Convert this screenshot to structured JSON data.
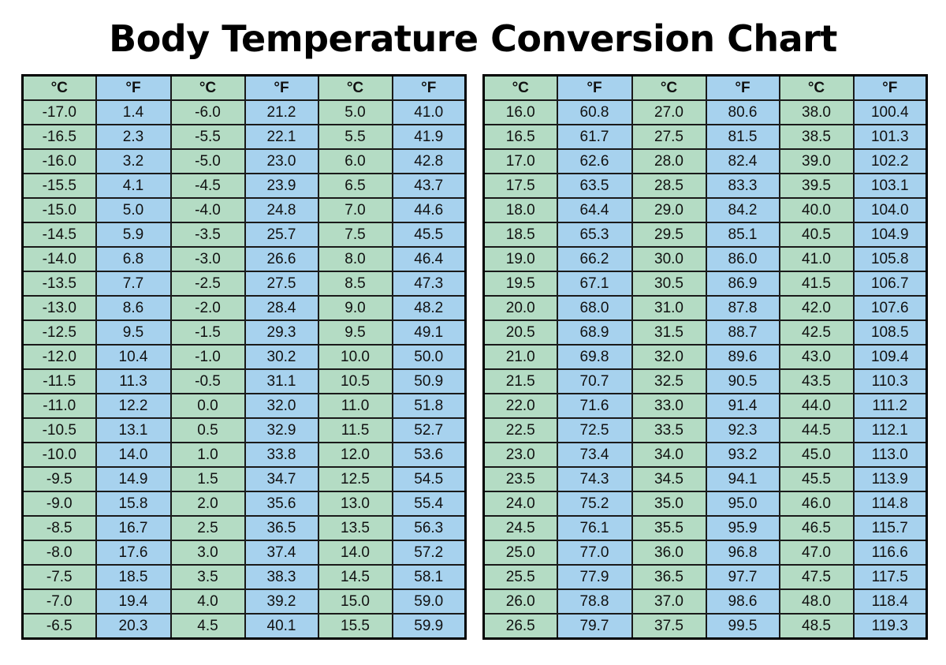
{
  "title": "Body Temperature Conversion Chart",
  "header": [
    "°C",
    "°F",
    "°C",
    "°F",
    "°C",
    "°F"
  ],
  "left_table": [
    [
      "-17.0",
      "1.4",
      "-6.0",
      "21.2",
      "5.0",
      "41.0"
    ],
    [
      "-16.5",
      "2.3",
      "-5.5",
      "22.1",
      "5.5",
      "41.9"
    ],
    [
      "-16.0",
      "3.2",
      "-5.0",
      "23.0",
      "6.0",
      "42.8"
    ],
    [
      "-15.5",
      "4.1",
      "-4.5",
      "23.9",
      "6.5",
      "43.7"
    ],
    [
      "-15.0",
      "5.0",
      "-4.0",
      "24.8",
      "7.0",
      "44.6"
    ],
    [
      "-14.5",
      "5.9",
      "-3.5",
      "25.7",
      "7.5",
      "45.5"
    ],
    [
      "-14.0",
      "6.8",
      "-3.0",
      "26.6",
      "8.0",
      "46.4"
    ],
    [
      "-13.5",
      "7.7",
      "-2.5",
      "27.5",
      "8.5",
      "47.3"
    ],
    [
      "-13.0",
      "8.6",
      "-2.0",
      "28.4",
      "9.0",
      "48.2"
    ],
    [
      "-12.5",
      "9.5",
      "-1.5",
      "29.3",
      "9.5",
      "49.1"
    ],
    [
      "-12.0",
      "10.4",
      "-1.0",
      "30.2",
      "10.0",
      "50.0"
    ],
    [
      "-11.5",
      "11.3",
      "-0.5",
      "31.1",
      "10.5",
      "50.9"
    ],
    [
      "-11.0",
      "12.2",
      "0.0",
      "32.0",
      "11.0",
      "51.8"
    ],
    [
      "-10.5",
      "13.1",
      "0.5",
      "32.9",
      "11.5",
      "52.7"
    ],
    [
      "-10.0",
      "14.0",
      "1.0",
      "33.8",
      "12.0",
      "53.6"
    ],
    [
      "-9.5",
      "14.9",
      "1.5",
      "34.7",
      "12.5",
      "54.5"
    ],
    [
      "-9.0",
      "15.8",
      "2.0",
      "35.6",
      "13.0",
      "55.4"
    ],
    [
      "-8.5",
      "16.7",
      "2.5",
      "36.5",
      "13.5",
      "56.3"
    ],
    [
      "-8.0",
      "17.6",
      "3.0",
      "37.4",
      "14.0",
      "57.2"
    ],
    [
      "-7.5",
      "18.5",
      "3.5",
      "38.3",
      "14.5",
      "58.1"
    ],
    [
      "-7.0",
      "19.4",
      "4.0",
      "39.2",
      "15.0",
      "59.0"
    ],
    [
      "-6.5",
      "20.3",
      "4.5",
      "40.1",
      "15.5",
      "59.9"
    ]
  ],
  "right_table": [
    [
      "16.0",
      "60.8",
      "27.0",
      "80.6",
      "38.0",
      "100.4"
    ],
    [
      "16.5",
      "61.7",
      "27.5",
      "81.5",
      "38.5",
      "101.3"
    ],
    [
      "17.0",
      "62.6",
      "28.0",
      "82.4",
      "39.0",
      "102.2"
    ],
    [
      "17.5",
      "63.5",
      "28.5",
      "83.3",
      "39.5",
      "103.1"
    ],
    [
      "18.0",
      "64.4",
      "29.0",
      "84.2",
      "40.0",
      "104.0"
    ],
    [
      "18.5",
      "65.3",
      "29.5",
      "85.1",
      "40.5",
      "104.9"
    ],
    [
      "19.0",
      "66.2",
      "30.0",
      "86.0",
      "41.0",
      "105.8"
    ],
    [
      "19.5",
      "67.1",
      "30.5",
      "86.9",
      "41.5",
      "106.7"
    ],
    [
      "20.0",
      "68.0",
      "31.0",
      "87.8",
      "42.0",
      "107.6"
    ],
    [
      "20.5",
      "68.9",
      "31.5",
      "88.7",
      "42.5",
      "108.5"
    ],
    [
      "21.0",
      "69.8",
      "32.0",
      "89.6",
      "43.0",
      "109.4"
    ],
    [
      "21.5",
      "70.7",
      "32.5",
      "90.5",
      "43.5",
      "110.3"
    ],
    [
      "22.0",
      "71.6",
      "33.0",
      "91.4",
      "44.0",
      "111.2"
    ],
    [
      "22.5",
      "72.5",
      "33.5",
      "92.3",
      "44.5",
      "112.1"
    ],
    [
      "23.0",
      "73.4",
      "34.0",
      "93.2",
      "45.0",
      "113.0"
    ],
    [
      "23.5",
      "74.3",
      "34.5",
      "94.1",
      "45.5",
      "113.9"
    ],
    [
      "24.0",
      "75.2",
      "35.0",
      "95.0",
      "46.0",
      "114.8"
    ],
    [
      "24.5",
      "76.1",
      "35.5",
      "95.9",
      "46.5",
      "115.7"
    ],
    [
      "25.0",
      "77.0",
      "36.0",
      "96.8",
      "47.0",
      "116.6"
    ],
    [
      "25.5",
      "77.9",
      "36.5",
      "97.7",
      "47.5",
      "117.5"
    ],
    [
      "26.0",
      "78.8",
      "37.0",
      "98.6",
      "48.0",
      "118.4"
    ],
    [
      "26.5",
      "79.7",
      "37.5",
      "99.5",
      "48.5",
      "119.3"
    ]
  ],
  "colors": {
    "celsius_column": "#b4dcc4",
    "fahrenheit_column": "#a7d2ee",
    "grid": "#1a1a1a"
  }
}
